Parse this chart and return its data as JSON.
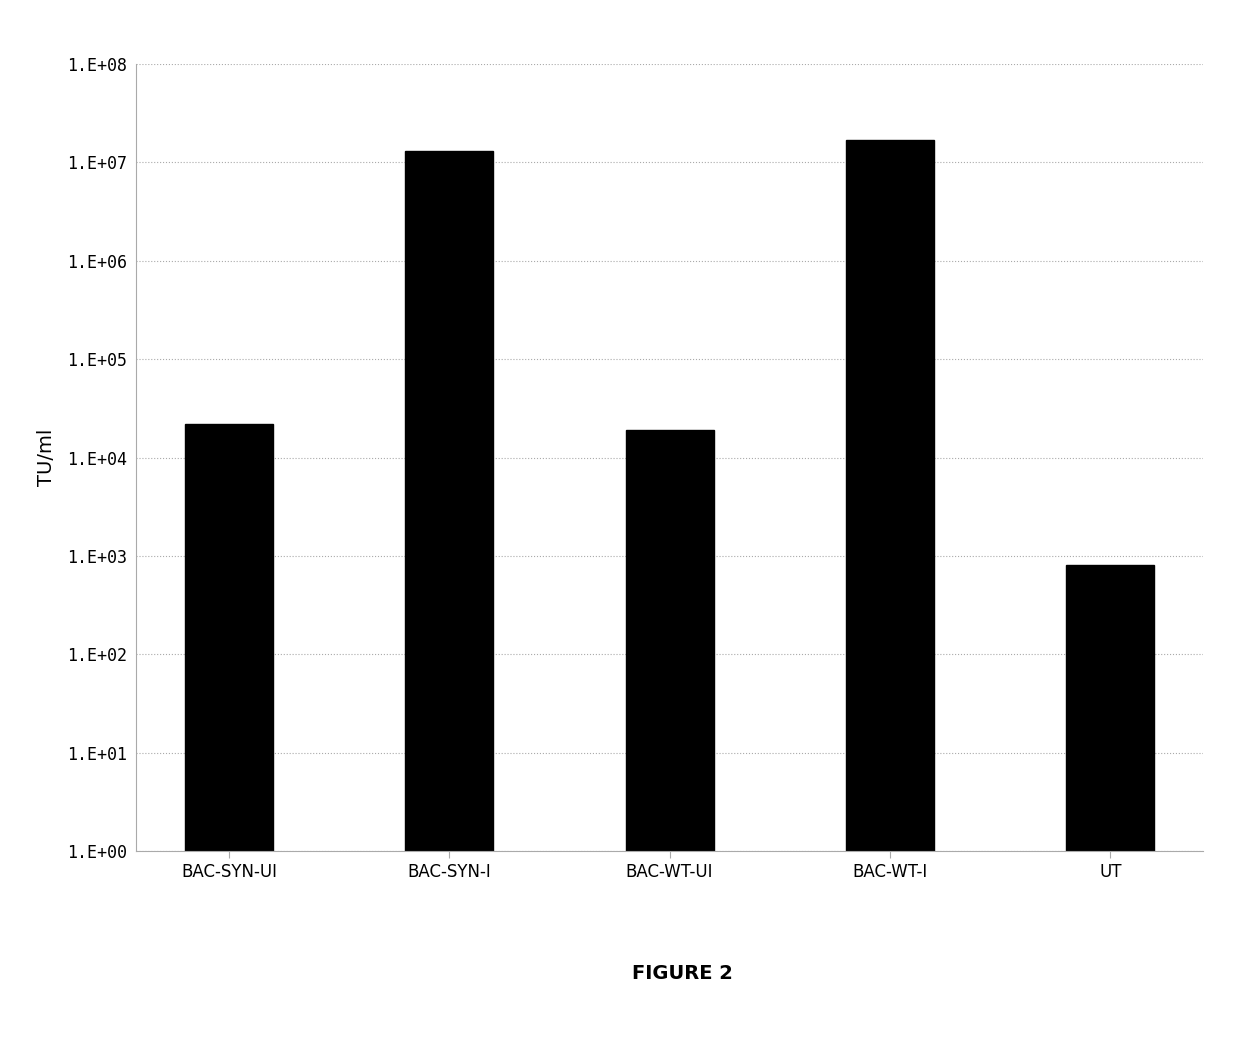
{
  "categories": [
    "BAC-SYN-UI",
    "BAC-SYN-I",
    "BAC-WT-UI",
    "BAC-WT-I",
    "UT"
  ],
  "values": [
    22000.0,
    13000000.0,
    19000.0,
    17000000.0,
    800.0
  ],
  "bar_color": "#000000",
  "ylabel": "TU/ml",
  "ylim_log_min": 1.0,
  "ylim_log_max": 100000000.0,
  "yticks": [
    1.0,
    10.0,
    100.0,
    1000.0,
    10000.0,
    100000.0,
    1000000.0,
    10000000.0,
    100000000.0
  ],
  "ytick_labels": [
    "1.E+00",
    "1.E+01",
    "1.E+02",
    "1.E+03",
    "1.E+04",
    "1.E+05",
    "1.E+06",
    "1.E+07",
    "1.E+08"
  ],
  "figure_label": "FIGURE 2",
  "figure_label_fontsize": 14,
  "background_color": "#ffffff",
  "grid_color": "#aaaaaa",
  "bar_width": 0.4,
  "ylabel_fontsize": 14,
  "tick_fontsize": 12,
  "spine_color": "#aaaaaa"
}
